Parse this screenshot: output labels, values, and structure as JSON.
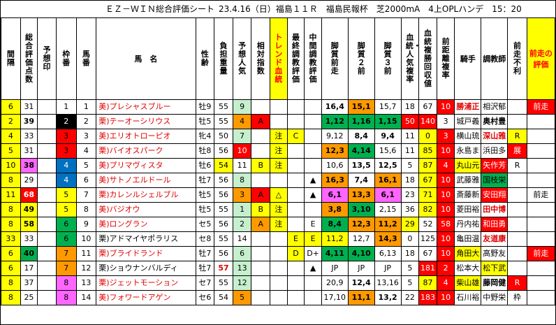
{
  "title": {
    "sheet_name": "ＥＺ－ＷＩＮ総合評価シート",
    "race_info": "23.4.16（日）福島１１Ｒ　福島民報杯　芝2000mA　4上OPLハンデ　15：20"
  },
  "headers": [
    "間隔",
    "総合評価点数",
    "予想印",
    "枠番",
    "馬番",
    "馬　名",
    "性齢",
    "負担重量",
    "予想人気",
    "相対指数",
    "トレンド血統",
    "最終調教評価",
    "中間調教評価",
    "脚質前走",
    "脚質２前",
    "脚質３前",
    "血統・人気複率",
    "血統複勝回収値",
    "前距離複率",
    "騎手",
    "調教師",
    "前走不利",
    "前走の評価"
  ],
  "horses": [
    {
      "interval": "6",
      "total": "31",
      "mark": "",
      "waku": "1",
      "umaban": "1",
      "name": "美)プレシャスブルー",
      "sexage": "牡9",
      "weight": "55",
      "popular": "9",
      "relative": "",
      "trend": "",
      "final": "",
      "mid": "",
      "p1": "16,4",
      "p2": "15,1",
      "p3": "15,7",
      "pop_rate": "18",
      "recovery": "67",
      "dist_rate": "10",
      "jockey": "勝浦正",
      "trainer": "相沢郁",
      "furi": "",
      "eval": "前走"
    },
    {
      "interval": "2",
      "total": "39",
      "mark": "",
      "waku": "2",
      "umaban": "2",
      "name": "栗)テーオーシリウス",
      "sexage": "牡5",
      "weight": "55",
      "popular": "4",
      "relative": "A",
      "trend": "",
      "final": "",
      "mid": "",
      "p1": "1,12",
      "p2": "1,16",
      "p3": "1,15",
      "pop_rate": "50",
      "recovery": "140",
      "dist_rate": "3",
      "jockey": "城戸義",
      "trainer": "奥村豊",
      "furi": "",
      "eval": ""
    },
    {
      "interval": "4",
      "total": "33",
      "mark": "",
      "waku": "3",
      "umaban": "3",
      "name": "美)エリオトローピオ",
      "sexage": "牝4",
      "weight": "50",
      "popular": "7",
      "relative": "",
      "trend": "注",
      "final": "C",
      "mid": "",
      "p1": "9,12",
      "p2": "8,4",
      "p3": "9,4",
      "pop_rate": "11",
      "recovery": "0",
      "dist_rate": "3",
      "jockey": "横山琉",
      "trainer": "深山雅",
      "furi": "R",
      "eval": ""
    },
    {
      "interval": "5",
      "total": "31",
      "mark": "",
      "waku": "3",
      "umaban": "4",
      "name": "栗)バイオスパーク",
      "sexage": "牡8",
      "weight": "56",
      "popular": "10",
      "relative": "",
      "trend": "注",
      "final": "",
      "mid": "",
      "p1": "12,3",
      "p2": "4,14",
      "p3": "15,6",
      "pop_rate": "11",
      "recovery": "85",
      "dist_rate": "10",
      "jockey": "永島ま",
      "trainer": "浜田多",
      "furi": "展",
      "eval": ""
    },
    {
      "interval": "10",
      "total": "38",
      "mark": "",
      "waku": "4",
      "umaban": "5",
      "name": "美)プリマヴィスタ",
      "sexage": "牡6",
      "weight": "54",
      "popular": "11",
      "relative": "B",
      "trend": "注",
      "final": "",
      "mid": "",
      "p1": "10,6",
      "p2": "13,5",
      "p3": "12,5",
      "pop_rate": "5",
      "recovery": "87",
      "dist_rate": "4",
      "jockey": "丸山元",
      "trainer": "矢作芳",
      "furi": "R",
      "eval": ""
    },
    {
      "interval": "8",
      "total": "29",
      "mark": "",
      "waku": "4",
      "umaban": "6",
      "name": "美)サトノエルドール",
      "sexage": "牡7",
      "weight": "56",
      "popular": "8",
      "relative": "",
      "trend": "",
      "final": "",
      "mid": "▲",
      "p1": "16,3",
      "p2": "7,4",
      "p3": "16,1",
      "pop_rate": "18",
      "recovery": "67",
      "dist_rate": "10",
      "jockey": "武藤雅",
      "trainer": "国枝栄",
      "furi": "",
      "eval": ""
    },
    {
      "interval": "11",
      "total": "68",
      "mark": "",
      "waku": "5",
      "umaban": "7",
      "name": "栗)カレンルシェルブル",
      "sexage": "牡5",
      "weight": "56",
      "popular": "3",
      "relative": "A",
      "trend": "△",
      "final": "",
      "mid": "▲",
      "p1": "6,1",
      "p2": "13,3",
      "p3": "6,1",
      "pop_rate": "23",
      "recovery": "71",
      "dist_rate": "10",
      "jockey": "斎藤新",
      "trainer": "安田翔",
      "furi": "",
      "eval": "前走"
    },
    {
      "interval": "8",
      "total": "49",
      "mark": "",
      "waku": "5",
      "umaban": "8",
      "name": "美)バジオウ",
      "sexage": "牡5",
      "weight": "55",
      "popular": "1",
      "relative": "B",
      "trend": "注",
      "final": "",
      "mid": "",
      "p1": "3,8",
      "p2": "3,10",
      "p3": "2,15",
      "pop_rate": "36",
      "recovery": "82",
      "dist_rate": "10",
      "jockey": "菱田裕",
      "trainer": "田中博",
      "furi": "",
      "eval": ""
    },
    {
      "interval": "8",
      "total": "58",
      "mark": "",
      "waku": "6",
      "umaban": "9",
      "name": "美)ロングラン",
      "sexage": "セ5",
      "weight": "56",
      "popular": "2",
      "relative": "A",
      "trend": "注",
      "final": "",
      "mid": "E",
      "p1": "8,4",
      "p2": "12,3",
      "p3": "11,2",
      "pop_rate": "29",
      "recovery": "52",
      "dist_rate": "58",
      "jockey": "丹内祐",
      "trainer": "和田勇",
      "furi": "",
      "eval": ""
    },
    {
      "interval": "33",
      "total": "33",
      "mark": "",
      "waku": "6",
      "umaban": "10",
      "name": "栗)アドマイヤポラリス",
      "sexage": "セ8",
      "weight": "55",
      "popular": "14",
      "relative": "",
      "trend": "",
      "final": "E",
      "mid": "E",
      "p1": "11,2",
      "p2": "12,7",
      "p3": "14,3",
      "pop_rate": "0",
      "recovery": "125",
      "dist_rate": "10",
      "jockey": "亀田温",
      "trainer": "友道康",
      "furi": "",
      "eval": ""
    },
    {
      "interval": "6",
      "total": "40",
      "mark": "",
      "waku": "7",
      "umaban": "11",
      "name": "栗)ブライドランド",
      "sexage": "牡7",
      "weight": "56",
      "popular": "6",
      "relative": "",
      "trend": "",
      "final": "D",
      "mid": "D+",
      "p1": "4,11",
      "p2": "4,10",
      "p3": "6,13",
      "pop_rate": "18",
      "recovery": "67",
      "dist_rate": "10",
      "jockey": "角田大",
      "trainer": "高野友",
      "furi": "",
      "eval": "前走"
    },
    {
      "interval": "6",
      "total": "17",
      "mark": "",
      "waku": "7",
      "umaban": "12",
      "name": "栗)ショウナンバルディ",
      "sexage": "牡7",
      "weight": "57",
      "popular": "13",
      "relative": "",
      "trend": "",
      "final": "",
      "mid": "▲",
      "p1": "JP",
      "p2": "JP",
      "p3": "JP",
      "pop_rate": "5",
      "recovery": "181",
      "dist_rate": "2",
      "jockey": "松本大",
      "trainer": "松下武",
      "furi": "",
      "eval": ""
    },
    {
      "interval": "8",
      "total": "37",
      "mark": "",
      "waku": "8",
      "umaban": "13",
      "name": "栗)ジェットモーション",
      "sexage": "セ7",
      "weight": "55",
      "popular": "12",
      "relative": "",
      "trend": "",
      "final": "",
      "mid": "",
      "p1": "20,9",
      "p2": "12,4",
      "p3": "13,16",
      "pop_rate": "5",
      "recovery": "87",
      "dist_rate": "4",
      "jockey": "柴山雄",
      "trainer": "藤岡健",
      "furi": "R",
      "eval": ""
    },
    {
      "interval": "8",
      "total": "25",
      "mark": "",
      "waku": "8",
      "umaban": "14",
      "name": "美)フォワードアゲン",
      "sexage": "セ6",
      "weight": "54",
      "popular": "5",
      "relative": "",
      "trend": "",
      "final": "",
      "mid": "",
      "p1": "17,10",
      "p2": "11,1",
      "p3": "13,2",
      "pop_rate": "22",
      "recovery": "183",
      "dist_rate": "10",
      "jockey": "石川裕",
      "trainer": "中野栄",
      "furi": "枠",
      "eval": ""
    }
  ],
  "colors": {
    "interval_bg": "#ffff00",
    "eval_bg": "#ff0000",
    "dist_bg": "#ff0000",
    "waku": {
      "1": "#ffffff",
      "2": "#000000",
      "3": "#ff0000",
      "4": "#0070c0",
      "5": "#ffff00",
      "6": "#00b050",
      "7": "#ff9900",
      "8": "#ff66ff"
    }
  }
}
